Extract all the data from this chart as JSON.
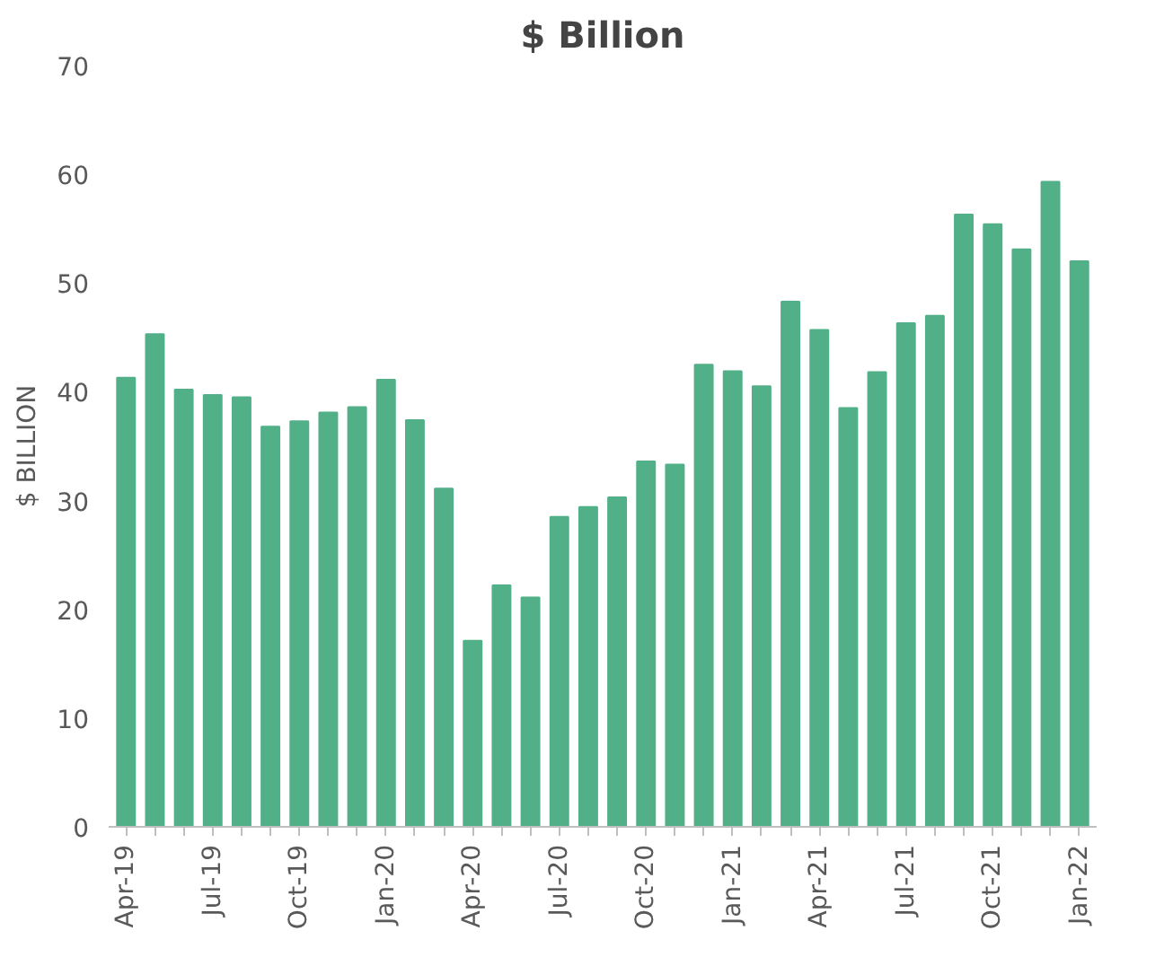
{
  "chart_data": {
    "type": "bar",
    "title": "$ Billion",
    "ylabel": "$ BILLION",
    "categories": [
      "Apr-19",
      null,
      null,
      "Jul-19",
      null,
      null,
      "Oct-19",
      null,
      null,
      "Jan-20",
      null,
      null,
      "Apr-20",
      null,
      null,
      "Jul-20",
      null,
      null,
      "Oct-20",
      null,
      null,
      "Jan-21",
      null,
      null,
      "Apr-21",
      null,
      null,
      "Jul-21",
      null,
      null,
      "Oct-21",
      null,
      null,
      "Jan-22"
    ],
    "values": [
      41.3,
      45.3,
      40.2,
      39.7,
      39.5,
      36.8,
      37.3,
      38.1,
      38.6,
      41.1,
      37.4,
      31.1,
      17.1,
      22.2,
      21.1,
      28.5,
      29.4,
      30.3,
      33.6,
      33.3,
      42.5,
      41.9,
      40.5,
      48.3,
      45.7,
      38.5,
      41.8,
      46.3,
      47.0,
      56.3,
      55.4,
      53.1,
      59.3,
      52.0
    ],
    "color": "#52b088",
    "ylim": [
      0,
      70
    ],
    "yticks": [
      0,
      10,
      20,
      30,
      40,
      50,
      60,
      70
    ],
    "grid": false
  }
}
